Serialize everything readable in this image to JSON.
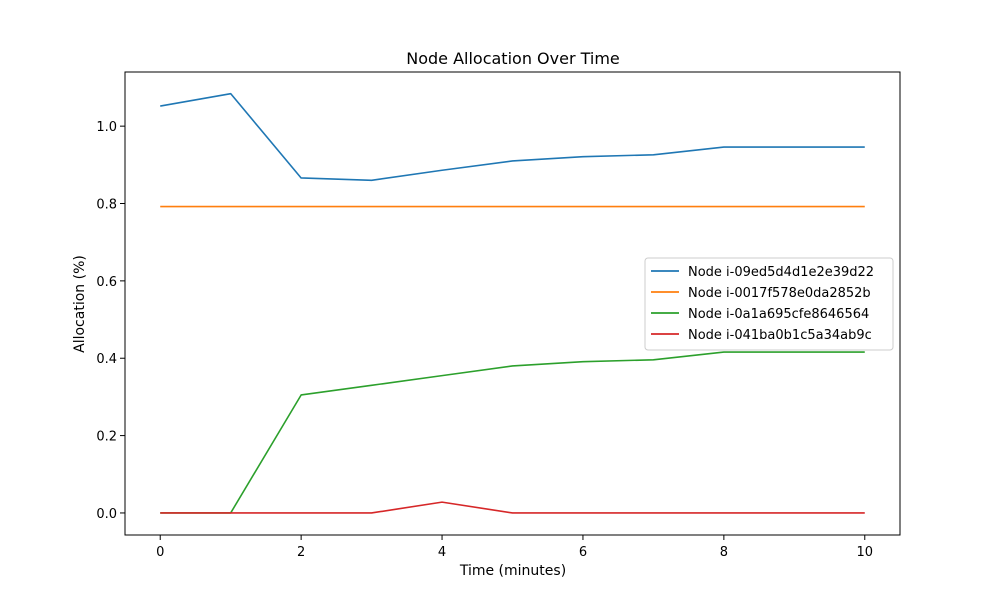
{
  "chart_data": {
    "type": "line",
    "title": "Node Allocation Over Time",
    "xlabel": "Time (minutes)",
    "ylabel": "Allocation (%)",
    "xlim": [
      -0.5,
      10.5
    ],
    "ylim": [
      -0.057,
      1.14
    ],
    "xticks": [
      0,
      2,
      4,
      6,
      8,
      10
    ],
    "yticks": [
      0.0,
      0.2,
      0.4,
      0.6,
      0.8,
      1.0
    ],
    "ytick_labels": [
      "0.0",
      "0.2",
      "0.4",
      "0.6",
      "0.8",
      "1.0"
    ],
    "grid": false,
    "legend_position": "center-right",
    "x": [
      0,
      1,
      2,
      3,
      4,
      5,
      6,
      7,
      8,
      9,
      10
    ],
    "series": [
      {
        "name": "Node i-09ed5d4d1e2e39d22",
        "color": "#1f77b4",
        "values": [
          1.052,
          1.084,
          0.866,
          0.86,
          0.886,
          0.91,
          0.921,
          0.926,
          0.946,
          0.946,
          0.946
        ]
      },
      {
        "name": "Node i-0017f578e0da2852b",
        "color": "#ff7f0e",
        "values": [
          0.792,
          0.792,
          0.792,
          0.792,
          0.792,
          0.792,
          0.792,
          0.792,
          0.792,
          0.792,
          0.792
        ]
      },
      {
        "name": "Node i-0a1a695cfe8646564",
        "color": "#2ca02c",
        "values": [
          0.0,
          0.0,
          0.305,
          0.33,
          0.355,
          0.38,
          0.391,
          0.396,
          0.416,
          0.416,
          0.416
        ]
      },
      {
        "name": "Node i-041ba0b1c5a34ab9c",
        "color": "#d62728",
        "values": [
          0.0,
          0.0,
          0.0,
          0.0,
          0.028,
          0.0,
          0.0,
          0.0,
          0.0,
          0.0,
          0.0
        ]
      }
    ]
  }
}
